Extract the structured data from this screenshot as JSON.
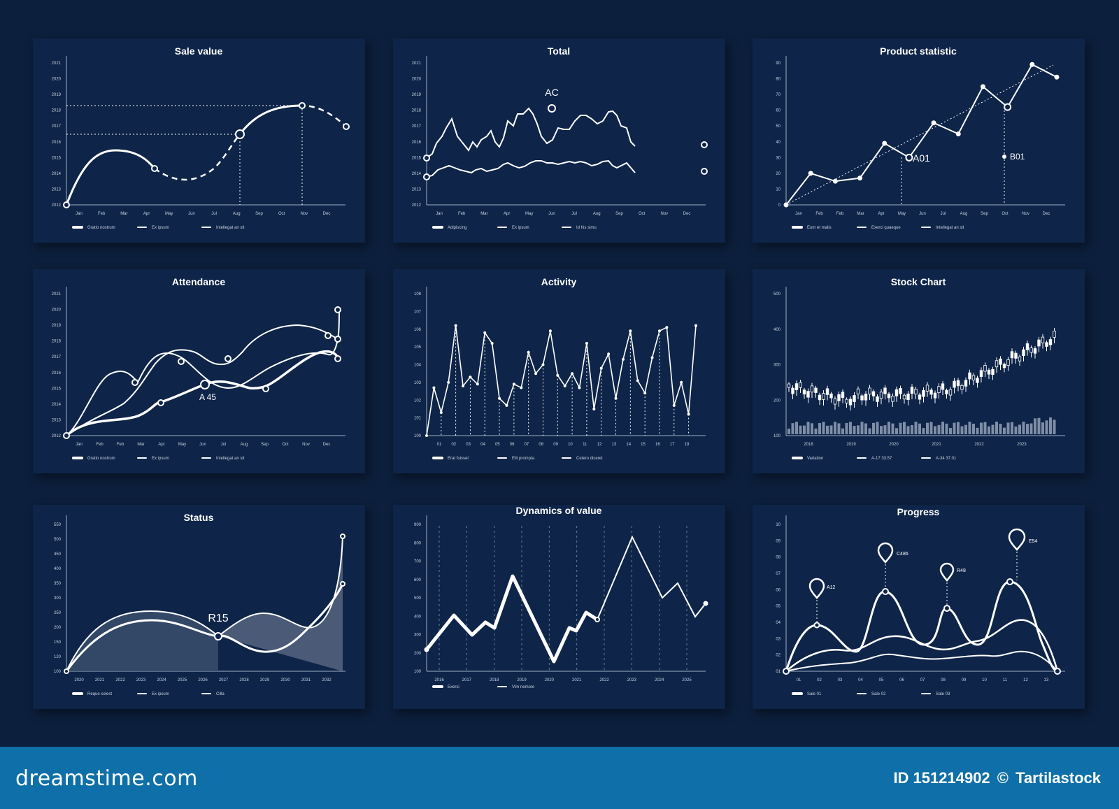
{
  "colors": {
    "background": "#0c1f3c",
    "panel": "#0e2448",
    "line": "#ffffff",
    "footer": "#0f6fa8"
  },
  "footer": {
    "site": "dreamstime.com",
    "id_label": "ID 151214902",
    "copyright_icon": "©",
    "author": "Tartilastock"
  },
  "charts": [
    {
      "id": "sale-value",
      "title": "Sale value",
      "type": "line",
      "x_labels": [
        "Jan",
        "Feb",
        "Mar",
        "Apr",
        "May",
        "Jun",
        "Jul",
        "Aug",
        "Sep",
        "Oct",
        "Nov",
        "Dec"
      ],
      "y_labels": [
        "2012",
        "2013",
        "2014",
        "2015",
        "2016",
        "2017",
        "2018",
        "2019",
        "2020",
        "2021"
      ],
      "legend": [
        "Gratio nostrum",
        "Ex ipsum",
        "Intellegat an sit"
      ]
    },
    {
      "id": "total",
      "title": "Total",
      "type": "line",
      "annotation": "AC",
      "x_labels": [
        "Jan",
        "Feb",
        "Mar",
        "Apr",
        "May",
        "Jun",
        "Jul",
        "Aug",
        "Sep",
        "Oct",
        "Nov",
        "Dec"
      ],
      "y_labels": [
        "2012",
        "2013",
        "2014",
        "2015",
        "2016",
        "2017",
        "2018",
        "2019",
        "2020",
        "2021"
      ],
      "legend": [
        "Adipiscing",
        "Ex ipsum",
        "Id his simu"
      ]
    },
    {
      "id": "product-statistic",
      "title": "Product statistic",
      "type": "line",
      "annotations": [
        "A01",
        "B01"
      ],
      "x_labels": [
        "Jan",
        "Feb",
        "Feb",
        "Mar",
        "Apr",
        "May",
        "Jun",
        "Jul",
        "Aug",
        "Sep",
        "Oct",
        "Nov",
        "Dec"
      ],
      "y_labels": [
        "0",
        "10",
        "20",
        "30",
        "40",
        "50",
        "60",
        "70",
        "80",
        "90"
      ],
      "values": [
        0,
        20,
        15,
        17,
        39,
        30,
        52,
        45,
        75,
        62,
        89,
        81
      ],
      "legend": [
        "Eum et malis",
        "Exerci quaeque",
        "Intellegat an sit"
      ]
    },
    {
      "id": "attendance",
      "title": "Attendance",
      "type": "line",
      "annotation": "A 45",
      "x_labels": [
        "Jan",
        "Feb",
        "Feb",
        "Mar",
        "Apr",
        "May",
        "Jun",
        "Jul",
        "Aug",
        "Sep",
        "Oct",
        "Nov",
        "Dec"
      ],
      "y_labels": [
        "2012",
        "2013",
        "2014",
        "2015",
        "2016",
        "2017",
        "2018",
        "2019",
        "2020",
        "2021"
      ],
      "legend": [
        "Gratio nostrum",
        "Ex ipsum",
        "Intellegat an sit"
      ]
    },
    {
      "id": "activity",
      "title": "Activity",
      "type": "line",
      "x_labels": [
        "01",
        "02",
        "03",
        "04",
        "05",
        "06",
        "07",
        "08",
        "09",
        "10",
        "11",
        "12",
        "13",
        "14",
        "15",
        "16",
        "17",
        "18"
      ],
      "y_labels": [
        "100",
        "101",
        "102",
        "103",
        "104",
        "105",
        "106",
        "107",
        "108"
      ],
      "values": [
        100,
        102.7,
        101.3,
        103,
        106.2,
        102.8,
        103.3,
        102.9,
        105.8,
        105.2,
        102.1,
        101.7,
        102.9,
        102.7,
        104.7,
        103.5,
        104,
        105.9,
        103.4,
        102.8,
        103.5,
        102.7,
        105.2,
        101.5,
        103.8,
        104.6,
        102.1,
        104.3,
        105.9,
        103.1,
        102.4,
        104.4,
        105.9,
        106.1,
        101.7,
        103,
        101.2,
        106.2
      ],
      "legend": [
        "Erat fuisset",
        "Elit prompta",
        "Cetero diceret"
      ]
    },
    {
      "id": "stock-chart",
      "title": "Stock Chart",
      "type": "bar",
      "x_labels": [
        "2018",
        "2019",
        "2020",
        "2021",
        "2022",
        "2023"
      ],
      "y_labels": [
        "100",
        "200",
        "300",
        "400",
        "500"
      ],
      "legend": [
        "Variation",
        "A-17  33.57",
        "A-34  37.01"
      ]
    },
    {
      "id": "status",
      "title": "Status",
      "type": "area",
      "annotation": "R15",
      "x_labels": [
        "2020",
        "2021",
        "2022",
        "2023",
        "2024",
        "2025",
        "2026",
        "2027",
        "2028",
        "2029",
        "2030",
        "2031",
        "2032"
      ],
      "y_labels": [
        "100",
        "120",
        "150",
        "200",
        "250",
        "300",
        "350",
        "400",
        "450",
        "500",
        "550"
      ],
      "legend": [
        "Reque solest",
        "Ex ipsum",
        "Cilla"
      ]
    },
    {
      "id": "dynamics-of-value",
      "title": "Dynamics of value",
      "type": "line",
      "x_labels": [
        "2016",
        "2017",
        "2018",
        "2019",
        "2020",
        "2021",
        "2022",
        "2023",
        "2024",
        "2025"
      ],
      "y_labels": [
        "100",
        "200",
        "300",
        "400",
        "500",
        "600",
        "700",
        "800",
        "900"
      ],
      "legend": [
        "Exerci",
        "Vim nemore"
      ]
    },
    {
      "id": "progress",
      "title": "Progress",
      "type": "line",
      "markers": [
        "A12",
        "C486",
        "R48",
        "E54"
      ],
      "x_labels": [
        "01",
        "02",
        "03",
        "04",
        "05",
        "06",
        "07",
        "08",
        "09",
        "10",
        "11",
        "12",
        "13"
      ],
      "y_labels": [
        "01",
        "02",
        "03",
        "04",
        "05",
        "06",
        "07",
        "08",
        "09",
        "10"
      ],
      "legend": [
        "Sale 01",
        "Sale 02",
        "Sale 03"
      ]
    }
  ]
}
